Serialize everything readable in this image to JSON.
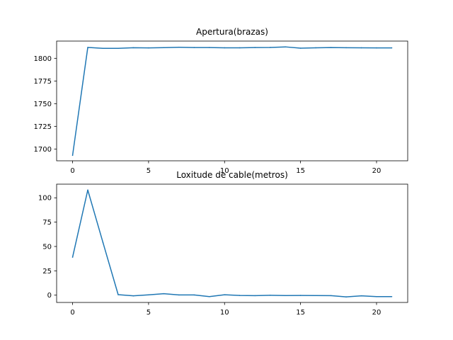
{
  "chart_data": [
    {
      "type": "line",
      "title": "Apertura(brazas)",
      "xlabel": "",
      "ylabel": "",
      "xlim": [
        -1.05,
        22.05
      ],
      "ylim": [
        1687,
        1819
      ],
      "xticks": [
        0,
        5,
        10,
        15,
        20
      ],
      "yticks": [
        1700,
        1725,
        1750,
        1775,
        1800
      ],
      "grid": false,
      "color": "#1f77b4",
      "x": [
        0,
        1,
        2,
        3,
        4,
        5,
        6,
        7,
        8,
        9,
        10,
        11,
        12,
        13,
        14,
        15,
        16,
        17,
        18,
        19,
        20,
        21
      ],
      "y": [
        1693,
        1812,
        1811,
        1811,
        1811.7,
        1811.5,
        1811.8,
        1812.2,
        1811.9,
        1811.9,
        1811.6,
        1811.6,
        1811.9,
        1812,
        1812.6,
        1811.2,
        1811.6,
        1811.9,
        1811.7,
        1811.6,
        1811.5,
        1811.5
      ]
    },
    {
      "type": "line",
      "title": "Loxitude de cable(metros)",
      "xlabel": "",
      "ylabel": "",
      "xlim": [
        -1.05,
        22.05
      ],
      "ylim": [
        -7.5,
        114
      ],
      "xticks": [
        0,
        5,
        10,
        15,
        20
      ],
      "yticks": [
        0,
        25,
        50,
        75,
        100
      ],
      "grid": false,
      "color": "#1f77b4",
      "x": [
        0,
        1,
        2,
        3,
        4,
        5,
        6,
        7,
        8,
        9,
        10,
        11,
        12,
        13,
        14,
        15,
        16,
        17,
        18,
        19,
        20,
        21
      ],
      "y": [
        39,
        108,
        54,
        0.5,
        -0.7,
        0.3,
        1.5,
        0.2,
        0.2,
        -1.5,
        0.4,
        -0.3,
        -0.5,
        -0.1,
        -0.4,
        -0.3,
        -0.4,
        -0.5,
        -1.8,
        -0.7,
        -1.5,
        -1.5
      ]
    }
  ]
}
